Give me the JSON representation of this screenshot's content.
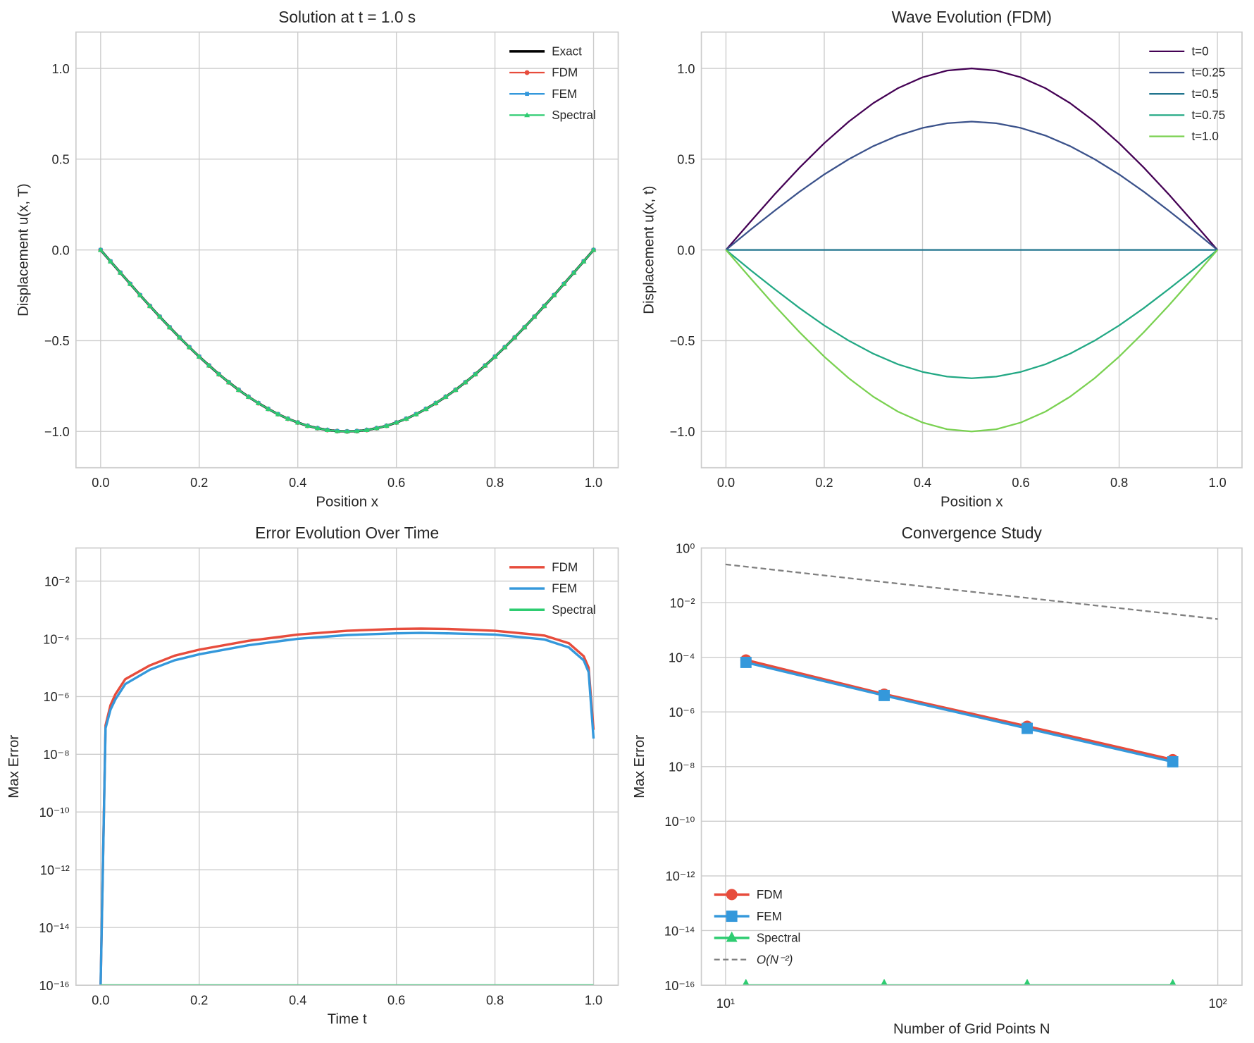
{
  "chart_data": [
    {
      "type": "line",
      "title": "Solution at t = 1.0 s",
      "xlabel": "Position x",
      "ylabel": "Displacement u(x, T)",
      "xscale": "linear",
      "yscale": "linear",
      "xlim": [
        -0.05,
        1.05
      ],
      "ylim": [
        -1.2,
        1.2
      ],
      "grid": true,
      "legend": "top-right",
      "xticks": [
        0,
        0.2,
        0.4,
        0.6,
        0.8,
        1.0
      ],
      "xticklabels": [
        "0.0",
        "0.2",
        "0.4",
        "0.6",
        "0.8",
        "1.0"
      ],
      "yticks": [
        -1,
        -0.5,
        0,
        0.5,
        1
      ],
      "yticklabels": [
        "−1.0",
        "−0.5",
        "0.0",
        "0.5",
        "1.0"
      ],
      "x": [
        0,
        0.02,
        0.04,
        0.06,
        0.08,
        0.1,
        0.12,
        0.14,
        0.16,
        0.18,
        0.2,
        0.22,
        0.24,
        0.26,
        0.28,
        0.3,
        0.32,
        0.34,
        0.36,
        0.38,
        0.4,
        0.42,
        0.44,
        0.46,
        0.48,
        0.5,
        0.52,
        0.54,
        0.56,
        0.58,
        0.6,
        0.62,
        0.64,
        0.66,
        0.68,
        0.7,
        0.72,
        0.74,
        0.76,
        0.78,
        0.8,
        0.82,
        0.84,
        0.86,
        0.88,
        0.9,
        0.92,
        0.94,
        0.96,
        0.98,
        1.0
      ],
      "series": [
        {
          "name": "Exact",
          "color": "#000000",
          "width": 3,
          "marker": "none",
          "values": [
            0,
            -0.063,
            -0.125,
            -0.187,
            -0.249,
            -0.309,
            -0.368,
            -0.426,
            -0.482,
            -0.536,
            -0.588,
            -0.637,
            -0.685,
            -0.729,
            -0.771,
            -0.809,
            -0.844,
            -0.876,
            -0.905,
            -0.93,
            -0.951,
            -0.969,
            -0.982,
            -0.992,
            -0.998,
            -1.0,
            -0.998,
            -0.992,
            -0.982,
            -0.969,
            -0.951,
            -0.93,
            -0.905,
            -0.876,
            -0.844,
            -0.809,
            -0.771,
            -0.729,
            -0.685,
            -0.637,
            -0.588,
            -0.536,
            -0.482,
            -0.426,
            -0.368,
            -0.309,
            -0.249,
            -0.187,
            -0.125,
            -0.063,
            0
          ]
        },
        {
          "name": "FDM",
          "color": "#e74c3c",
          "width": 2,
          "marker": "circle",
          "values": [
            0,
            -0.063,
            -0.125,
            -0.187,
            -0.249,
            -0.309,
            -0.368,
            -0.426,
            -0.482,
            -0.536,
            -0.588,
            -0.637,
            -0.685,
            -0.729,
            -0.771,
            -0.809,
            -0.844,
            -0.876,
            -0.905,
            -0.93,
            -0.951,
            -0.969,
            -0.982,
            -0.992,
            -0.998,
            -1.0,
            -0.998,
            -0.992,
            -0.982,
            -0.969,
            -0.951,
            -0.93,
            -0.905,
            -0.876,
            -0.844,
            -0.809,
            -0.771,
            -0.729,
            -0.685,
            -0.637,
            -0.588,
            -0.536,
            -0.482,
            -0.426,
            -0.368,
            -0.309,
            -0.249,
            -0.187,
            -0.125,
            -0.063,
            0
          ]
        },
        {
          "name": "FEM",
          "color": "#3498db",
          "width": 2,
          "marker": "square",
          "values": [
            0,
            -0.063,
            -0.125,
            -0.187,
            -0.249,
            -0.309,
            -0.368,
            -0.426,
            -0.482,
            -0.536,
            -0.588,
            -0.637,
            -0.685,
            -0.729,
            -0.771,
            -0.809,
            -0.844,
            -0.876,
            -0.905,
            -0.93,
            -0.951,
            -0.969,
            -0.982,
            -0.992,
            -0.998,
            -1.0,
            -0.998,
            -0.992,
            -0.982,
            -0.969,
            -0.951,
            -0.93,
            -0.905,
            -0.876,
            -0.844,
            -0.809,
            -0.771,
            -0.729,
            -0.685,
            -0.637,
            -0.588,
            -0.536,
            -0.482,
            -0.426,
            -0.368,
            -0.309,
            -0.249,
            -0.187,
            -0.125,
            -0.063,
            0
          ]
        },
        {
          "name": "Spectral",
          "color": "#2ecc71",
          "width": 2,
          "marker": "triangle",
          "values": [
            0,
            -0.063,
            -0.125,
            -0.187,
            -0.249,
            -0.309,
            -0.368,
            -0.426,
            -0.482,
            -0.536,
            -0.588,
            -0.637,
            -0.685,
            -0.729,
            -0.771,
            -0.809,
            -0.844,
            -0.876,
            -0.905,
            -0.93,
            -0.951,
            -0.969,
            -0.982,
            -0.992,
            -0.998,
            -1.0,
            -0.998,
            -0.992,
            -0.982,
            -0.969,
            -0.951,
            -0.93,
            -0.905,
            -0.876,
            -0.844,
            -0.809,
            -0.771,
            -0.729,
            -0.685,
            -0.637,
            -0.588,
            -0.536,
            -0.482,
            -0.426,
            -0.368,
            -0.309,
            -0.249,
            -0.187,
            -0.125,
            -0.063,
            0
          ]
        }
      ]
    },
    {
      "type": "line",
      "title": "Wave Evolution (FDM)",
      "xlabel": "Position x",
      "ylabel": "Displacement u(x, t)",
      "xscale": "linear",
      "yscale": "linear",
      "xlim": [
        -0.05,
        1.05
      ],
      "ylim": [
        -1.2,
        1.2
      ],
      "grid": true,
      "legend": "top-right",
      "xticks": [
        0,
        0.2,
        0.4,
        0.6,
        0.8,
        1.0
      ],
      "xticklabels": [
        "0.0",
        "0.2",
        "0.4",
        "0.6",
        "0.8",
        "1.0"
      ],
      "yticks": [
        -1,
        -0.5,
        0,
        0.5,
        1
      ],
      "yticklabels": [
        "−1.0",
        "−0.5",
        "0.0",
        "0.5",
        "1.0"
      ],
      "x": [
        0,
        0.05,
        0.1,
        0.15,
        0.2,
        0.25,
        0.3,
        0.35,
        0.4,
        0.45,
        0.5,
        0.55,
        0.6,
        0.65,
        0.7,
        0.75,
        0.8,
        0.85,
        0.9,
        0.95,
        1.0
      ],
      "series": [
        {
          "name": "t=0",
          "color": "#440154",
          "width": 2,
          "marker": "none",
          "values": [
            0,
            0.156,
            0.309,
            0.454,
            0.588,
            0.707,
            0.809,
            0.891,
            0.951,
            0.988,
            1,
            0.988,
            0.951,
            0.891,
            0.809,
            0.707,
            0.588,
            0.454,
            0.309,
            0.156,
            0
          ]
        },
        {
          "name": "t=0.25",
          "color": "#3b528b",
          "width": 2,
          "marker": "none",
          "values": [
            0,
            0.111,
            0.218,
            0.321,
            0.416,
            0.5,
            0.572,
            0.63,
            0.672,
            0.698,
            0.707,
            0.698,
            0.672,
            0.63,
            0.572,
            0.5,
            0.416,
            0.321,
            0.218,
            0.111,
            0
          ]
        },
        {
          "name": "t=0.5",
          "color": "#21758e",
          "width": 2,
          "marker": "none",
          "values": [
            0,
            0,
            0,
            0,
            0,
            0,
            0,
            0,
            0,
            0,
            0,
            0,
            0,
            0,
            0,
            0,
            0,
            0,
            0,
            0,
            0
          ]
        },
        {
          "name": "t=0.75",
          "color": "#22a884",
          "width": 2,
          "marker": "none",
          "values": [
            0,
            -0.111,
            -0.218,
            -0.321,
            -0.416,
            -0.5,
            -0.572,
            -0.63,
            -0.672,
            -0.698,
            -0.707,
            -0.698,
            -0.672,
            -0.63,
            -0.572,
            -0.5,
            -0.416,
            -0.321,
            -0.218,
            -0.111,
            0
          ]
        },
        {
          "name": "t=1.0",
          "color": "#7ad151",
          "width": 2,
          "marker": "none",
          "values": [
            0,
            -0.156,
            -0.309,
            -0.454,
            -0.588,
            -0.707,
            -0.809,
            -0.891,
            -0.951,
            -0.988,
            -1,
            -0.988,
            -0.951,
            -0.891,
            -0.809,
            -0.707,
            -0.588,
            -0.454,
            -0.309,
            -0.156,
            0
          ]
        }
      ]
    },
    {
      "type": "line",
      "title": "Error Evolution Over Time",
      "xlabel": "Time t",
      "ylabel": "Max Error",
      "xscale": "linear",
      "yscale": "log",
      "xlim": [
        -0.05,
        1.05
      ],
      "ylim": [
        1e-16,
        0.14
      ],
      "grid": true,
      "legend": "top-right",
      "xticks": [
        0,
        0.2,
        0.4,
        0.6,
        0.8,
        1.0
      ],
      "xticklabels": [
        "0.0",
        "0.2",
        "0.4",
        "0.6",
        "0.8",
        "1.0"
      ],
      "yticks": [
        1e-16,
        1e-14,
        1e-12,
        1e-10,
        1e-08,
        1e-06,
        0.0001,
        0.01
      ],
      "yticklabels": [
        "10⁻¹⁶",
        "10⁻¹⁴",
        "10⁻¹²",
        "10⁻¹⁰",
        "10⁻⁸",
        "10⁻⁶",
        "10⁻⁴",
        "10⁻²"
      ],
      "series": [
        {
          "name": "FDM",
          "color": "#e74c3c",
          "width": 3,
          "marker": "none",
          "x": [
            0,
            0.01,
            0.02,
            0.03,
            0.05,
            0.1,
            0.15,
            0.2,
            0.3,
            0.4,
            0.5,
            0.6,
            0.65,
            0.7,
            0.8,
            0.9,
            0.95,
            0.98,
            0.99,
            1.0
          ],
          "values": [
            1e-16,
            1e-07,
            5e-07,
            1.2e-06,
            4e-06,
            1.2e-05,
            2.6e-05,
            4.2e-05,
            8.5e-05,
            0.00014,
            0.00019,
            0.00022,
            0.000225,
            0.00022,
            0.00019,
            0.00013,
            7e-05,
            2.5e-05,
            1e-05,
            7e-08
          ]
        },
        {
          "name": "FEM",
          "color": "#3498db",
          "width": 3,
          "marker": "none",
          "x": [
            0,
            0.01,
            0.02,
            0.03,
            0.05,
            0.1,
            0.15,
            0.2,
            0.3,
            0.4,
            0.5,
            0.6,
            0.65,
            0.7,
            0.8,
            0.9,
            0.95,
            0.98,
            0.99,
            1.0
          ],
          "values": [
            1e-16,
            8e-08,
            3.5e-07,
            8e-07,
            2.7e-06,
            8.5e-06,
            1.8e-05,
            2.9e-05,
            6e-05,
            0.0001,
            0.000135,
            0.000155,
            0.00016,
            0.000155,
            0.00014,
            9.5e-05,
            5e-05,
            1.8e-05,
            7e-06,
            3.5e-08
          ]
        },
        {
          "name": "Spectral",
          "color": "#2ecc71",
          "width": 3,
          "marker": "none",
          "x": [
            0,
            1.0
          ],
          "values": [
            1e-16,
            1e-16
          ]
        }
      ]
    },
    {
      "type": "line",
      "title": "Convergence Study",
      "xlabel": "Number of Grid Points N",
      "ylabel": "Max Error",
      "xscale": "log",
      "yscale": "log",
      "xlim": [
        8.93,
        112
      ],
      "ylim": [
        1e-16,
        1
      ],
      "grid": true,
      "legend": "lower-left",
      "xticks": [
        10,
        100
      ],
      "xticklabels": [
        "10¹",
        "10²"
      ],
      "yticks": [
        1e-16,
        1e-14,
        1e-12,
        1e-10,
        1e-08,
        1e-06,
        0.0001,
        0.01,
        1
      ],
      "yticklabels": [
        "10⁻¹⁶",
        "10⁻¹⁴",
        "10⁻¹²",
        "10⁻¹⁰",
        "10⁻⁸",
        "10⁻⁶",
        "10⁻⁴",
        "10⁻²",
        "10⁰"
      ],
      "series": [
        {
          "name": "FDM",
          "color": "#e74c3c",
          "width": 3,
          "marker": "circle-lg",
          "x": [
            11,
            21,
            41,
            81
          ],
          "values": [
            8e-05,
            4.5e-06,
            3e-07,
            1.8e-08
          ]
        },
        {
          "name": "FEM",
          "color": "#3498db",
          "width": 3,
          "marker": "square-lg",
          "x": [
            11,
            21,
            41,
            81
          ],
          "values": [
            6.5e-05,
            4e-06,
            2.5e-07,
            1.5e-08
          ]
        },
        {
          "name": "Spectral",
          "color": "#2ecc71",
          "width": 3,
          "marker": "triangle-lg",
          "x": [
            11,
            21,
            41,
            81
          ],
          "values": [
            1e-16,
            1e-16,
            1e-16,
            1e-16
          ]
        },
        {
          "name": "O(N⁻²)",
          "color": "#808080",
          "width": 2,
          "marker": "none",
          "dashed": true,
          "x": [
            10,
            100
          ],
          "values": [
            0.25,
            0.0025
          ]
        }
      ]
    }
  ]
}
